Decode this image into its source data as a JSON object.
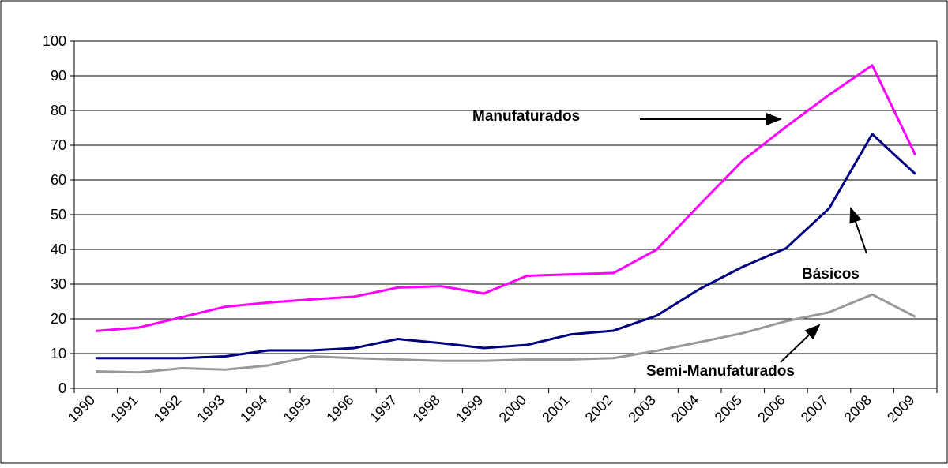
{
  "chart_data": {
    "type": "line",
    "categories": [
      "1990",
      "1991",
      "1992",
      "1993",
      "1994",
      "1995",
      "1996",
      "1997",
      "1998",
      "1999",
      "2000",
      "2001",
      "2002",
      "2003",
      "2004",
      "2005",
      "2006",
      "2007",
      "2008",
      "2009"
    ],
    "series": [
      {
        "name": "Manufaturados",
        "color": "#ff00ff",
        "values": [
          16.5,
          17.5,
          20.5,
          23.5,
          24.7,
          25.6,
          26.4,
          29,
          29.4,
          27.3,
          32.4,
          32.8,
          33.2,
          39.9,
          52.9,
          65.6,
          75.3,
          84.5,
          93,
          67.2
        ]
      },
      {
        "name": "Básicos",
        "color": "#000080",
        "values": [
          8.7,
          8.7,
          8.7,
          9.2,
          10.9,
          10.9,
          11.6,
          14.2,
          13,
          11.6,
          12.5,
          15.5,
          16.6,
          20.9,
          28.6,
          35,
          40.3,
          51.8,
          73.2,
          61.7
        ]
      },
      {
        "name": "Semi-Manufaturados",
        "color": "#999999",
        "values": [
          4.9,
          4.6,
          5.8,
          5.4,
          6.6,
          9.2,
          8.7,
          8.3,
          7.9,
          7.9,
          8.3,
          8.3,
          8.7,
          10.8,
          13.3,
          15.9,
          19.3,
          21.9,
          27,
          20.6
        ]
      }
    ],
    "ylim": [
      0,
      100
    ],
    "yticks": [
      0,
      10,
      20,
      30,
      40,
      50,
      60,
      70,
      80,
      90,
      100
    ],
    "grid": true
  }
}
